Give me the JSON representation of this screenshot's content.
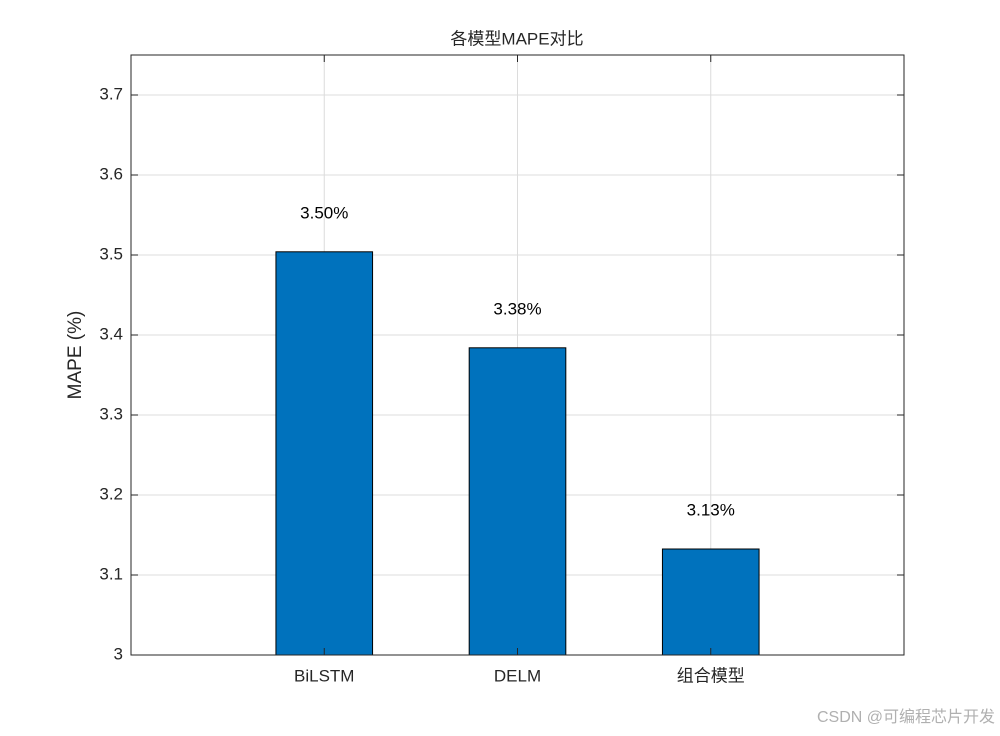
{
  "chart_data": {
    "type": "bar",
    "title": "各模型MAPE对比",
    "y_label": "MAPE (%)",
    "categories": [
      "BiLSTM",
      "DELM",
      "组合模型"
    ],
    "values": [
      3.504,
      3.384,
      3.1325
    ],
    "value_labels": [
      "3.50%",
      "3.38%",
      "3.13%"
    ],
    "color": "#0072bd",
    "ylim": [
      3,
      3.75
    ],
    "yticks": [
      3,
      3.1,
      3.2,
      3.3,
      3.4,
      3.5,
      3.6,
      3.7
    ],
    "grid": true,
    "watermark": "CSDN @可编程芯片开发"
  }
}
